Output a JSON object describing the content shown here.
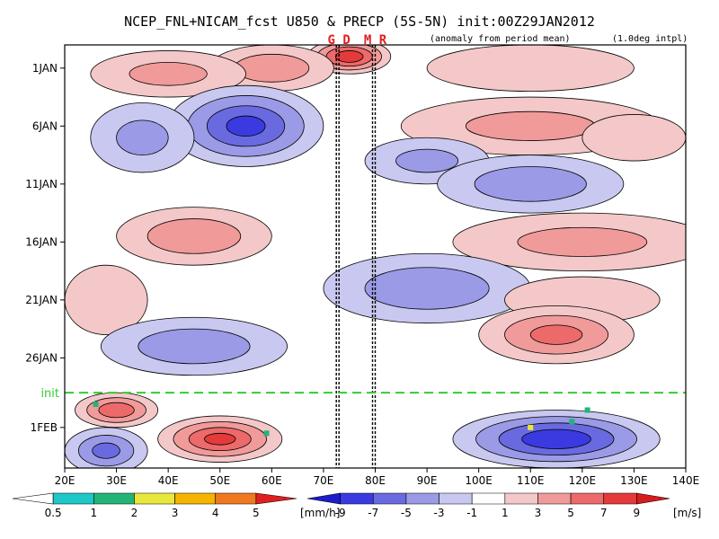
{
  "title": "NCEP_FNL+NICAM_fcst U850 & PRECP (5S-5N) init:00Z29JAN2012",
  "note_anomaly": "(anomaly from period mean)",
  "note_interp": "(1.0deg intpl)",
  "markers": [
    {
      "label": "G D",
      "lon": 73.0
    },
    {
      "label": "M R",
      "lon": 80.0
    }
  ],
  "chart_data": {
    "type": "heatmap",
    "title": "NCEP_FNL+NICAM_fcst U850 & PRECP (5S-5N) init:00Z29JAN2012",
    "x_ticks": [
      "20E",
      "30E",
      "40E",
      "50E",
      "60E",
      "70E",
      "80E",
      "90E",
      "100E",
      "110E",
      "120E",
      "130E",
      "140E"
    ],
    "x_range": [
      20,
      140
    ],
    "y_ticks": [
      "1JAN",
      "6JAN",
      "11JAN",
      "16JAN",
      "21JAN",
      "26JAN",
      "1FEB"
    ],
    "y_tick_days": [
      1,
      6,
      11,
      16,
      21,
      26,
      32
    ],
    "y_range_days": [
      -1,
      35.5
    ],
    "init_label": "init",
    "init_day": 29,
    "u850_anomaly_blobs": [
      {
        "lon": 75,
        "day": 0,
        "value": 8,
        "rlon": 8,
        "rday": 1.5
      },
      {
        "lon": 60,
        "day": 1,
        "value": 4,
        "rlon": 12,
        "rday": 2
      },
      {
        "lon": 40,
        "day": 1.5,
        "value": 3,
        "rlon": 15,
        "rday": 2
      },
      {
        "lon": 110,
        "day": 1,
        "value": 2,
        "rlon": 20,
        "rday": 2
      },
      {
        "lon": 55,
        "day": 6,
        "value": -7,
        "rlon": 15,
        "rday": 3.5
      },
      {
        "lon": 35,
        "day": 7,
        "value": -3,
        "rlon": 10,
        "rday": 3
      },
      {
        "lon": 110,
        "day": 6,
        "value": 3,
        "rlon": 25,
        "rday": 2.5
      },
      {
        "lon": 130,
        "day": 7,
        "value": 2,
        "rlon": 10,
        "rday": 2
      },
      {
        "lon": 90,
        "day": 9,
        "value": -3,
        "rlon": 12,
        "rday": 2
      },
      {
        "lon": 110,
        "day": 11,
        "value": -4,
        "rlon": 18,
        "rday": 2.5
      },
      {
        "lon": 45,
        "day": 15.5,
        "value": 4,
        "rlon": 15,
        "rday": 2.5
      },
      {
        "lon": 120,
        "day": 16,
        "value": 3,
        "rlon": 25,
        "rday": 2.5
      },
      {
        "lon": 28,
        "day": 21,
        "value": 2,
        "rlon": 8,
        "rday": 3
      },
      {
        "lon": 90,
        "day": 20,
        "value": -4,
        "rlon": 20,
        "rday": 3
      },
      {
        "lon": 120,
        "day": 21,
        "value": 2,
        "rlon": 15,
        "rday": 2
      },
      {
        "lon": 45,
        "day": 25,
        "value": -4,
        "rlon": 18,
        "rday": 2.5
      },
      {
        "lon": 115,
        "day": 24,
        "value": 5,
        "rlon": 15,
        "rday": 2.5
      },
      {
        "lon": 30,
        "day": 30.5,
        "value": 6,
        "rlon": 8,
        "rday": 1.5
      },
      {
        "lon": 50,
        "day": 33,
        "value": 7,
        "rlon": 12,
        "rday": 2
      },
      {
        "lon": 115,
        "day": 33,
        "value": -8,
        "rlon": 20,
        "rday": 2.5
      },
      {
        "lon": 28,
        "day": 34,
        "value": -5,
        "rlon": 8,
        "rday": 2
      }
    ],
    "precip_spots": [
      {
        "lon": 59,
        "day": 32.5,
        "value": 1
      },
      {
        "lon": 110,
        "day": 32,
        "value": 2
      },
      {
        "lon": 118,
        "day": 31.5,
        "value": 1
      },
      {
        "lon": 121,
        "day": 30.5,
        "value": 1
      },
      {
        "lon": 26,
        "day": 30,
        "value": 1
      }
    ],
    "precip_colorbar": {
      "labels": [
        "0.5",
        "1",
        "2",
        "3",
        "4",
        "5"
      ],
      "unit": "[mm/h]",
      "colors": [
        "#ffffff",
        "#1ec8c8",
        "#23b477",
        "#e8e83c",
        "#f4b400",
        "#f07820",
        "#e02020"
      ]
    },
    "u850_colorbar": {
      "labels": [
        "-9",
        "-7",
        "-5",
        "-3",
        "-1",
        "1",
        "3",
        "5",
        "7",
        "9"
      ],
      "unit": "[m/s]",
      "colors": [
        "#1c1ccc",
        "#3a3ae0",
        "#6a6ae0",
        "#9a9ae6",
        "#c8c8f0",
        "#ffffff",
        "#f4c8c8",
        "#f09a9a",
        "#ec6a6a",
        "#e43a3a",
        "#d81c1c"
      ]
    }
  }
}
